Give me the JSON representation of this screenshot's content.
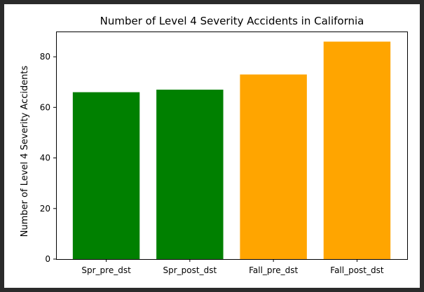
{
  "chart_data": {
    "type": "bar",
    "title": "Number of Level 4 Severity Accidents in California",
    "xlabel": "",
    "ylabel": "Number of Level 4 Severity Accidents",
    "categories": [
      "Spr_pre_dst",
      "Spr_post_dst",
      "Fall_pre_dst",
      "Fall_post_dst"
    ],
    "values": [
      66,
      67,
      73,
      86
    ],
    "colors": [
      "#008000",
      "#008000",
      "#ffa500",
      "#ffa500"
    ],
    "ylim": [
      0,
      90
    ],
    "yticks": [
      0,
      20,
      40,
      60,
      80
    ],
    "grid": false,
    "legend": "none"
  },
  "theme": {
    "background": "#2b2b2b",
    "frame": "#ffffff"
  }
}
